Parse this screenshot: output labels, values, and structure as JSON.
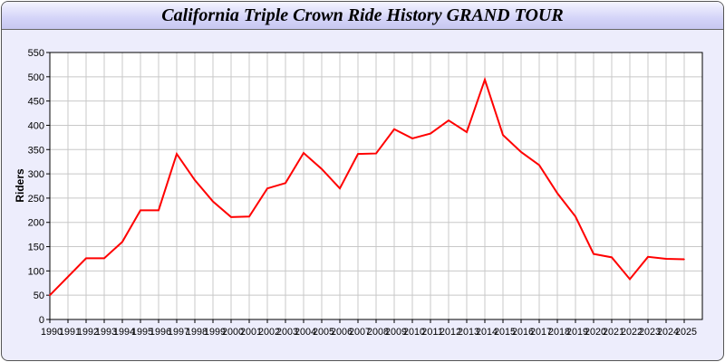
{
  "chart_data": {
    "type": "line",
    "title": "California Triple Crown Ride History GRAND TOUR",
    "xlabel": "",
    "ylabel": "Riders",
    "x": [
      1990,
      1991,
      1992,
      1993,
      1994,
      1995,
      1996,
      1997,
      1998,
      1999,
      2000,
      2001,
      2002,
      2003,
      2004,
      2005,
      2006,
      2007,
      2008,
      2009,
      2010,
      2011,
      2012,
      2013,
      2014,
      2015,
      2016,
      2017,
      2018,
      2019,
      2020,
      2021,
      2022,
      2023,
      2024,
      2025
    ],
    "series": [
      {
        "values": [
          50,
          88,
          126,
          126,
          160,
          225,
          225,
          341,
          287,
          243,
          211,
          212,
          270,
          281,
          343,
          310,
          270,
          341,
          342,
          392,
          373,
          383,
          410,
          386,
          494,
          380,
          345,
          318,
          260,
          212,
          135,
          128,
          83,
          129,
          125,
          124
        ],
        "color": "#ff0000"
      }
    ],
    "ylim": [
      0,
      550
    ],
    "yticks": [
      0,
      50,
      100,
      150,
      200,
      250,
      300,
      350,
      400,
      450,
      500,
      550
    ],
    "grid": true,
    "legend": "none"
  }
}
